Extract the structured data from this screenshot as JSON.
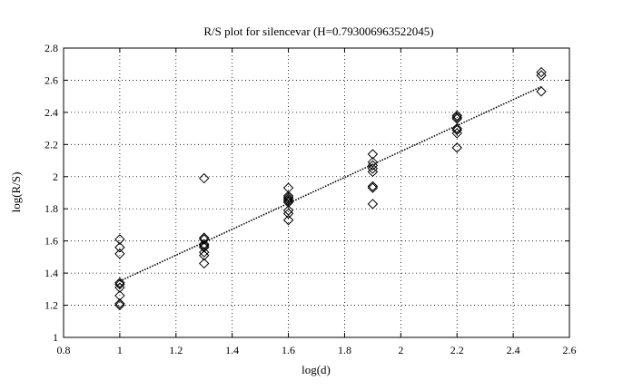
{
  "chart_data": {
    "type": "scatter",
    "title": "R/S plot for silencevar (H=0.793006963522045)",
    "xlabel": "log(d)",
    "ylabel": "log(R/S)",
    "xlim": [
      0.8,
      2.6
    ],
    "ylim": [
      1,
      2.8
    ],
    "xticks": [
      "0.8",
      "1",
      "1.2",
      "1.4",
      "1.6",
      "1.8",
      "2",
      "2.2",
      "2.4",
      "2.6"
    ],
    "yticks": [
      "1",
      "1.2",
      "1.4",
      "1.6",
      "1.8",
      "2",
      "2.2",
      "2.4",
      "2.6",
      "2.8"
    ],
    "grid": true,
    "marker": "diamond",
    "points": [
      [
        1.0,
        1.61
      ],
      [
        1.0,
        1.56
      ],
      [
        1.0,
        1.52
      ],
      [
        1.0,
        1.34
      ],
      [
        1.0,
        1.33
      ],
      [
        1.0,
        1.31
      ],
      [
        1.0,
        1.26
      ],
      [
        1.0,
        1.21
      ],
      [
        1.0,
        1.2
      ],
      [
        1.3,
        1.99
      ],
      [
        1.3,
        1.62
      ],
      [
        1.3,
        1.61
      ],
      [
        1.3,
        1.58
      ],
      [
        1.3,
        1.57
      ],
      [
        1.3,
        1.56
      ],
      [
        1.3,
        1.53
      ],
      [
        1.3,
        1.51
      ],
      [
        1.3,
        1.46
      ],
      [
        1.6,
        1.93
      ],
      [
        1.6,
        1.88
      ],
      [
        1.6,
        1.87
      ],
      [
        1.6,
        1.86
      ],
      [
        1.6,
        1.85
      ],
      [
        1.6,
        1.84
      ],
      [
        1.6,
        1.79
      ],
      [
        1.6,
        1.77
      ],
      [
        1.6,
        1.73
      ],
      [
        1.9,
        2.14
      ],
      [
        1.9,
        2.09
      ],
      [
        1.9,
        2.07
      ],
      [
        1.9,
        2.05
      ],
      [
        1.9,
        2.03
      ],
      [
        1.9,
        1.94
      ],
      [
        1.9,
        1.93
      ],
      [
        1.9,
        1.83
      ],
      [
        2.2,
        2.38
      ],
      [
        2.2,
        2.37
      ],
      [
        2.2,
        2.36
      ],
      [
        2.2,
        2.3
      ],
      [
        2.2,
        2.29
      ],
      [
        2.2,
        2.27
      ],
      [
        2.2,
        2.18
      ],
      [
        2.5,
        2.65
      ],
      [
        2.5,
        2.63
      ],
      [
        2.5,
        2.53
      ]
    ],
    "fit_line": {
      "style": "dotted",
      "x": [
        1.0,
        2.5
      ],
      "y": [
        1.35,
        2.56
      ]
    }
  }
}
